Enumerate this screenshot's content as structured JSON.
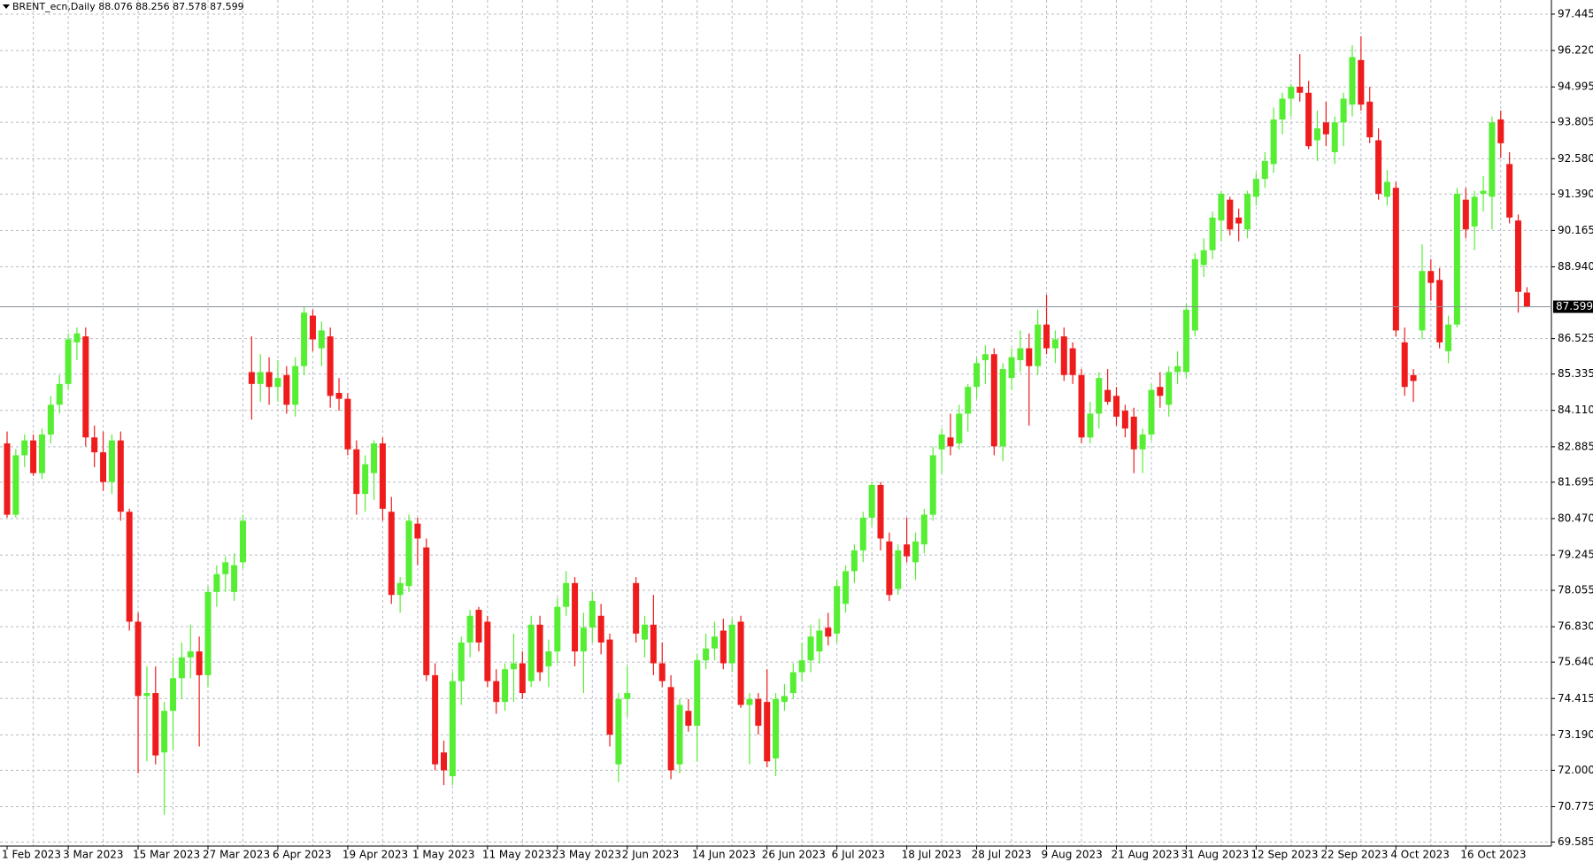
{
  "chart_data": {
    "type": "candlestick",
    "title": "BRENT_ecn,Daily  88.076 88.256 87.578 87.599",
    "up_color": "#55ee33",
    "down_color": "#ee1c1c",
    "grid": true,
    "last_price": 87.599,
    "ylim": [
      69.45,
      97.92
    ],
    "yticks": [
      97.445,
      {
        "value": 96.22,
        "label": "96.220"
      },
      94.995,
      93.805,
      {
        "value": 92.58,
        "label": "92.580"
      },
      {
        "value": 91.39,
        "label": "91.390"
      },
      90.165,
      {
        "value": 88.94,
        "label": "88.940"
      },
      86.525,
      85.335,
      {
        "value": 84.11,
        "label": "84.110"
      },
      82.885,
      81.695,
      {
        "value": 80.47,
        "label": "80.470"
      },
      79.245,
      78.055,
      {
        "value": 76.83,
        "label": "76.830"
      },
      {
        "value": 75.64,
        "label": "75.640"
      },
      74.415,
      {
        "value": 73.19,
        "label": "73.190"
      },
      {
        "value": 72.0,
        "label": "72.000"
      },
      70.775,
      69.585
    ],
    "categories": [
      "1 Feb 2023",
      null,
      null,
      null,
      null,
      null,
      null,
      "3 Mar 2023",
      null,
      null,
      null,
      null,
      null,
      null,
      null,
      "15 Mar 2023",
      null,
      null,
      null,
      null,
      null,
      null,
      null,
      "27 Mar 2023",
      null,
      null,
      null,
      null,
      null,
      null,
      null,
      "6 Apr 2023",
      null,
      null,
      null,
      null,
      null,
      null,
      null,
      "19 Apr 2023",
      null,
      null,
      null,
      null,
      null,
      null,
      null,
      "1 May 2023",
      null,
      null,
      null,
      null,
      null,
      null,
      null,
      "11 May 2023",
      null,
      null,
      null,
      null,
      null,
      null,
      null,
      "23 May 2023",
      null,
      null,
      null,
      null,
      null,
      null,
      null,
      "2 Jun 2023",
      null,
      null,
      null,
      null,
      null,
      null,
      null,
      "14 Jun 2023",
      null,
      null,
      null,
      null,
      null,
      null,
      null,
      "26 Jun 2023",
      null,
      null,
      null,
      null,
      null,
      null,
      null,
      "6 Jul 2023",
      null,
      null,
      null,
      null,
      null,
      null,
      null,
      "18 Jul 2023",
      null,
      null,
      null,
      null,
      null,
      null,
      null,
      "28 Jul 2023",
      null,
      null,
      null,
      null,
      null,
      null,
      null,
      "9 Aug 2023",
      null,
      null,
      null,
      null,
      null,
      null,
      null,
      "21 Aug 2023",
      null,
      null,
      null,
      null,
      null,
      null,
      null,
      "31 Aug 2023",
      null,
      null,
      null,
      null,
      null,
      null,
      null,
      "12 Sep 2023",
      null,
      null,
      null,
      null,
      null,
      null,
      null,
      "22 Sep 2023",
      null,
      null,
      null,
      null,
      null,
      null,
      null,
      "4 Oct 2023",
      null,
      null,
      null,
      null,
      null,
      null,
      null,
      "16 Oct 2023",
      null,
      null,
      null,
      null,
      null,
      null,
      null
    ],
    "candles": [
      [
        83.0,
        83.4,
        80.5,
        80.6
      ],
      [
        80.6,
        82.8,
        80.5,
        82.6
      ],
      [
        82.6,
        83.3,
        82.2,
        83.1
      ],
      [
        83.1,
        83.3,
        81.9,
        82.0
      ],
      [
        82.0,
        83.5,
        81.8,
        83.3
      ],
      [
        83.3,
        84.6,
        83.0,
        84.3
      ],
      [
        84.3,
        85.3,
        84.0,
        85.0
      ],
      [
        85.0,
        86.7,
        84.8,
        86.5
      ],
      [
        86.4,
        86.9,
        85.8,
        86.7
      ],
      [
        86.6,
        86.9,
        82.9,
        83.2
      ],
      [
        83.2,
        83.6,
        82.2,
        82.7
      ],
      [
        82.7,
        83.4,
        81.4,
        81.7
      ],
      [
        81.7,
        83.3,
        81.3,
        83.1
      ],
      [
        83.1,
        83.4,
        80.4,
        80.7
      ],
      [
        80.7,
        80.8,
        76.7,
        77.0
      ],
      [
        77.0,
        77.3,
        71.9,
        74.5
      ],
      [
        74.5,
        75.5,
        72.3,
        74.6
      ],
      [
        74.6,
        75.5,
        72.2,
        72.5
      ],
      [
        72.6,
        74.3,
        70.5,
        74.0
      ],
      [
        74.0,
        75.8,
        72.7,
        75.1
      ],
      [
        75.1,
        76.3,
        74.4,
        75.8
      ],
      [
        75.8,
        76.9,
        75.1,
        76.0
      ],
      [
        76.0,
        76.5,
        72.8,
        75.2
      ],
      [
        75.2,
        78.2,
        74.8,
        78.0
      ],
      [
        78.0,
        78.9,
        77.5,
        78.6
      ],
      [
        78.6,
        79.2,
        78.0,
        79.0
      ],
      [
        78.0,
        79.3,
        77.7,
        78.9
      ],
      [
        79.0,
        80.6,
        78.8,
        80.4
      ],
      [
        85.4,
        86.6,
        83.8,
        85.0
      ],
      [
        85.0,
        86.0,
        84.4,
        85.4
      ],
      [
        85.4,
        85.9,
        84.3,
        84.9
      ],
      [
        84.9,
        85.8,
        84.4,
        85.2
      ],
      [
        85.3,
        85.6,
        84.0,
        84.3
      ],
      [
        84.3,
        85.9,
        83.9,
        85.6
      ],
      [
        85.6,
        87.6,
        85.3,
        87.4
      ],
      [
        87.3,
        87.5,
        86.1,
        86.5
      ],
      [
        86.2,
        87.1,
        85.6,
        86.8
      ],
      [
        86.6,
        86.9,
        84.2,
        84.6
      ],
      [
        84.7,
        85.2,
        84.1,
        84.5
      ],
      [
        84.5,
        84.7,
        82.6,
        82.8
      ],
      [
        82.8,
        83.1,
        80.6,
        81.3
      ],
      [
        81.3,
        82.6,
        80.7,
        82.3
      ],
      [
        82.0,
        83.1,
        81.1,
        83.0
      ],
      [
        83.0,
        83.2,
        80.4,
        80.8
      ],
      [
        80.7,
        81.2,
        77.6,
        77.9
      ],
      [
        77.9,
        78.5,
        77.3,
        78.3
      ],
      [
        78.2,
        80.6,
        78.0,
        80.4
      ],
      [
        80.3,
        80.5,
        78.9,
        79.8
      ],
      [
        79.5,
        79.8,
        75.0,
        75.2
      ],
      [
        75.2,
        75.6,
        72.0,
        72.2
      ],
      [
        72.6,
        73.0,
        71.5,
        72.0
      ],
      [
        71.8,
        75.3,
        71.5,
        75.0
      ],
      [
        75.0,
        76.5,
        74.2,
        76.3
      ],
      [
        76.3,
        77.4,
        75.8,
        77.2
      ],
      [
        77.4,
        77.5,
        76.0,
        76.3
      ],
      [
        77.0,
        77.2,
        74.8,
        75.0
      ],
      [
        75.0,
        75.4,
        73.9,
        74.3
      ],
      [
        74.3,
        75.6,
        74.0,
        75.4
      ],
      [
        75.4,
        76.6,
        74.3,
        75.6
      ],
      [
        75.6,
        76.0,
        74.4,
        74.6
      ],
      [
        75.0,
        77.2,
        74.8,
        76.9
      ],
      [
        76.9,
        77.2,
        75.0,
        75.3
      ],
      [
        75.5,
        76.4,
        74.8,
        76.0
      ],
      [
        76.0,
        77.8,
        75.6,
        77.5
      ],
      [
        77.5,
        78.7,
        77.2,
        78.3
      ],
      [
        78.3,
        78.5,
        75.5,
        76.0
      ],
      [
        76.0,
        77.3,
        74.6,
        76.8
      ],
      [
        76.8,
        78.0,
        76.3,
        77.7
      ],
      [
        77.2,
        77.6,
        75.9,
        76.3
      ],
      [
        76.4,
        76.6,
        72.8,
        73.2
      ],
      [
        72.2,
        74.6,
        71.6,
        74.4
      ],
      [
        74.4,
        75.5,
        73.8,
        74.6
      ],
      [
        78.3,
        78.5,
        76.3,
        76.6
      ],
      [
        76.4,
        77.2,
        75.8,
        76.9
      ],
      [
        76.9,
        77.9,
        75.2,
        75.6
      ],
      [
        75.6,
        76.3,
        74.8,
        75.0
      ],
      [
        74.8,
        75.2,
        71.7,
        72.0
      ],
      [
        72.2,
        74.4,
        71.9,
        74.2
      ],
      [
        74.0,
        74.4,
        73.3,
        73.5
      ],
      [
        73.5,
        75.9,
        72.3,
        75.7
      ],
      [
        75.7,
        76.6,
        75.4,
        76.1
      ],
      [
        76.1,
        77.0,
        75.7,
        76.5
      ],
      [
        76.7,
        77.1,
        75.4,
        75.6
      ],
      [
        75.6,
        77.1,
        75.3,
        76.9
      ],
      [
        77.0,
        77.2,
        74.1,
        74.2
      ],
      [
        74.2,
        74.6,
        72.2,
        74.4
      ],
      [
        74.4,
        74.6,
        73.2,
        73.5
      ],
      [
        74.3,
        75.4,
        72.1,
        72.3
      ],
      [
        72.4,
        74.6,
        71.8,
        74.4
      ],
      [
        74.3,
        74.9,
        74.0,
        74.5
      ],
      [
        74.6,
        75.6,
        74.4,
        75.3
      ],
      [
        75.3,
        76.3,
        75.0,
        75.7
      ],
      [
        75.7,
        76.9,
        75.3,
        76.5
      ],
      [
        76.0,
        77.1,
        75.6,
        76.7
      ],
      [
        76.8,
        77.3,
        76.2,
        76.5
      ],
      [
        76.6,
        78.4,
        76.3,
        78.2
      ],
      [
        77.6,
        78.9,
        77.3,
        78.7
      ],
      [
        78.7,
        79.6,
        78.3,
        79.4
      ],
      [
        79.4,
        80.7,
        79.0,
        80.5
      ],
      [
        80.5,
        81.7,
        80.2,
        81.6
      ],
      [
        81.6,
        81.7,
        79.4,
        79.8
      ],
      [
        79.7,
        80.0,
        77.7,
        77.9
      ],
      [
        78.1,
        79.6,
        77.9,
        79.4
      ],
      [
        79.6,
        80.5,
        79.0,
        79.2
      ],
      [
        79.0,
        80.0,
        78.4,
        79.7
      ],
      [
        79.6,
        80.8,
        79.3,
        80.6
      ],
      [
        80.6,
        82.9,
        80.4,
        82.6
      ],
      [
        82.8,
        83.5,
        82.0,
        83.3
      ],
      [
        83.2,
        84.0,
        82.6,
        82.9
      ],
      [
        83.0,
        84.3,
        82.8,
        84.0
      ],
      [
        84.0,
        85.0,
        83.4,
        84.9
      ],
      [
        84.9,
        85.9,
        84.5,
        85.7
      ],
      [
        85.8,
        86.3,
        85.0,
        86.0
      ],
      [
        86.0,
        86.2,
        82.6,
        82.9
      ],
      [
        82.9,
        85.7,
        82.4,
        85.5
      ],
      [
        85.2,
        86.2,
        84.8,
        85.9
      ],
      [
        85.8,
        86.8,
        85.4,
        86.2
      ],
      [
        86.2,
        86.7,
        83.6,
        85.6
      ],
      [
        85.6,
        87.5,
        85.3,
        87.0
      ],
      [
        87.0,
        88.0,
        86.0,
        86.2
      ],
      [
        86.2,
        86.8,
        85.7,
        86.5
      ],
      [
        86.6,
        86.9,
        85.1,
        85.3
      ],
      [
        86.2,
        86.4,
        85.0,
        85.3
      ],
      [
        85.3,
        85.5,
        83.0,
        83.2
      ],
      [
        83.2,
        84.4,
        83.0,
        84.0
      ],
      [
        84.0,
        85.4,
        83.5,
        85.2
      ],
      [
        84.8,
        85.5,
        84.3,
        84.4
      ],
      [
        84.6,
        84.9,
        83.6,
        83.9
      ],
      [
        84.1,
        84.3,
        83.2,
        83.5
      ],
      [
        83.9,
        84.2,
        82.0,
        82.8
      ],
      [
        82.8,
        83.5,
        82.0,
        83.3
      ],
      [
        83.3,
        85.0,
        83.1,
        84.8
      ],
      [
        84.9,
        85.4,
        84.2,
        84.6
      ],
      [
        84.3,
        85.6,
        83.9,
        85.4
      ],
      [
        85.4,
        86.1,
        85.0,
        85.6
      ],
      [
        85.4,
        87.7,
        85.2,
        87.5
      ],
      [
        86.8,
        89.4,
        86.6,
        89.2
      ],
      [
        89.0,
        89.9,
        88.6,
        89.5
      ],
      [
        89.5,
        90.8,
        89.2,
        90.6
      ],
      [
        90.5,
        91.5,
        89.8,
        91.4
      ],
      [
        91.2,
        91.3,
        90.0,
        90.2
      ],
      [
        90.6,
        90.9,
        89.8,
        90.4
      ],
      [
        90.2,
        91.5,
        89.9,
        91.4
      ],
      [
        91.3,
        92.1,
        91.0,
        91.9
      ],
      [
        91.9,
        92.8,
        91.6,
        92.5
      ],
      [
        92.4,
        94.3,
        92.1,
        93.9
      ],
      [
        93.9,
        94.8,
        93.4,
        94.6
      ],
      [
        94.6,
        95.1,
        94.0,
        95.0
      ],
      [
        95.0,
        96.1,
        94.5,
        94.8
      ],
      [
        94.8,
        95.2,
        92.9,
        93.0
      ],
      [
        93.2,
        94.2,
        92.5,
        93.6
      ],
      [
        93.8,
        94.5,
        93.0,
        93.4
      ],
      [
        92.8,
        94.0,
        92.4,
        93.8
      ],
      [
        93.8,
        94.8,
        93.0,
        94.6
      ],
      [
        94.4,
        96.4,
        94.0,
        96.0
      ],
      [
        95.9,
        96.7,
        94.2,
        94.4
      ],
      [
        94.5,
        95.0,
        93.1,
        93.3
      ],
      [
        93.2,
        93.6,
        91.2,
        91.4
      ],
      [
        91.3,
        92.2,
        91.0,
        91.8
      ],
      [
        91.6,
        91.8,
        86.6,
        86.8
      ],
      [
        86.4,
        86.9,
        84.6,
        84.9
      ],
      [
        85.3,
        85.5,
        84.4,
        85.1
      ],
      [
        86.8,
        89.7,
        86.5,
        88.8
      ],
      [
        88.8,
        89.2,
        87.8,
        88.4
      ],
      [
        88.5,
        88.9,
        86.2,
        86.4
      ],
      [
        86.1,
        87.3,
        85.7,
        87.0
      ],
      [
        87.0,
        91.6,
        86.9,
        91.4
      ],
      [
        91.2,
        91.6,
        89.9,
        90.2
      ],
      [
        90.3,
        91.5,
        89.5,
        91.3
      ],
      [
        91.4,
        92.0,
        90.8,
        91.5
      ],
      [
        91.3,
        94.0,
        90.2,
        93.8
      ],
      [
        93.9,
        94.2,
        92.6,
        93.1
      ],
      [
        92.4,
        92.8,
        90.4,
        90.6
      ],
      [
        90.5,
        90.7,
        87.4,
        88.1
      ],
      [
        88.076,
        88.256,
        87.578,
        87.599
      ]
    ]
  }
}
